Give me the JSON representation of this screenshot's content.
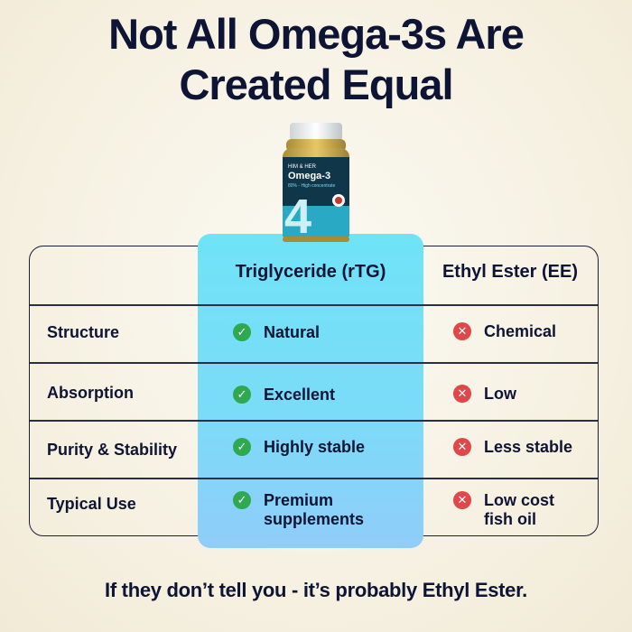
{
  "title": {
    "line1": "Not All Omega-3s Are",
    "line2": "Created Equal"
  },
  "product": {
    "brand": "HIM & HER",
    "name": "Omega-3",
    "subtitle": "80% - High concentrate",
    "big_numeral": "4"
  },
  "table": {
    "columns": [
      "Triglyceride (rTG)",
      "Ethyl Ester (EE)"
    ],
    "rows": [
      {
        "label": "Structure",
        "rtg": "Natural",
        "ee": "Chemical"
      },
      {
        "label": "Absorption",
        "rtg": "Excellent",
        "ee": "Low"
      },
      {
        "label": "Purity & Stability",
        "rtg": "Highly stable",
        "ee": "Less stable"
      },
      {
        "label": "Typical Use",
        "rtg": "Premium\nsupplements",
        "ee": "Low cost\nfish oil"
      }
    ]
  },
  "icons": {
    "positive": "check-icon",
    "negative": "cross-icon"
  },
  "colors": {
    "highlight": "#74dff8",
    "check": "#2fa84f",
    "cross": "#e0474a",
    "text": "#0e1433"
  },
  "footer": "If they don’t tell you - it’s probably Ethyl Ester."
}
